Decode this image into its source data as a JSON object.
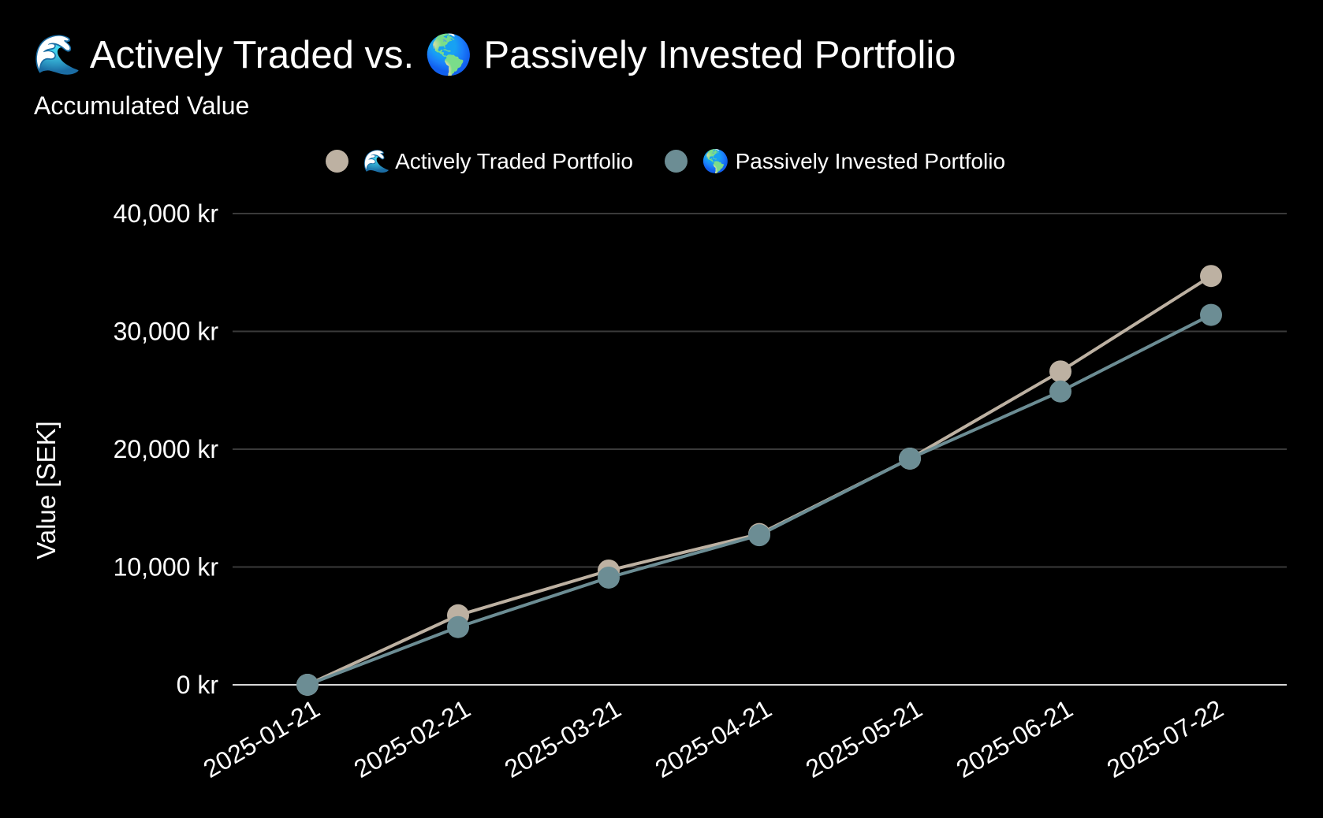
{
  "title": "🌊 Actively Traded vs. 🌎 Passively Invested Portfolio",
  "subtitle": "Accumulated Value",
  "chart_data": {
    "type": "line",
    "x": [
      "2025-01-21",
      "2025-02-21",
      "2025-03-21",
      "2025-04-21",
      "2025-05-21",
      "2025-06-21",
      "2025-07-22"
    ],
    "series": [
      {
        "name": "🌊 Actively Traded Portfolio",
        "color": "#bdb1a2",
        "values": [
          0,
          5900,
          9700,
          12800,
          19200,
          26600,
          34700
        ]
      },
      {
        "name": "🌎 Passively Invested Portfolio",
        "color": "#6c8d94",
        "values": [
          0,
          4900,
          9100,
          12700,
          19200,
          24900,
          31400
        ]
      }
    ],
    "ylabel": "Value [SEK]",
    "xlabel": "",
    "ylim": [
      0,
      40000
    ],
    "yticks": [
      "0 kr",
      "10,000 kr",
      "20,000 kr",
      "30,000 kr",
      "40,000 kr"
    ],
    "grid": true,
    "legend_position": "top-center"
  },
  "colors": {
    "background": "#000000",
    "gridline": "#3a3a3a",
    "axis_line": "#d8d8d8",
    "text": "#ffffff"
  }
}
